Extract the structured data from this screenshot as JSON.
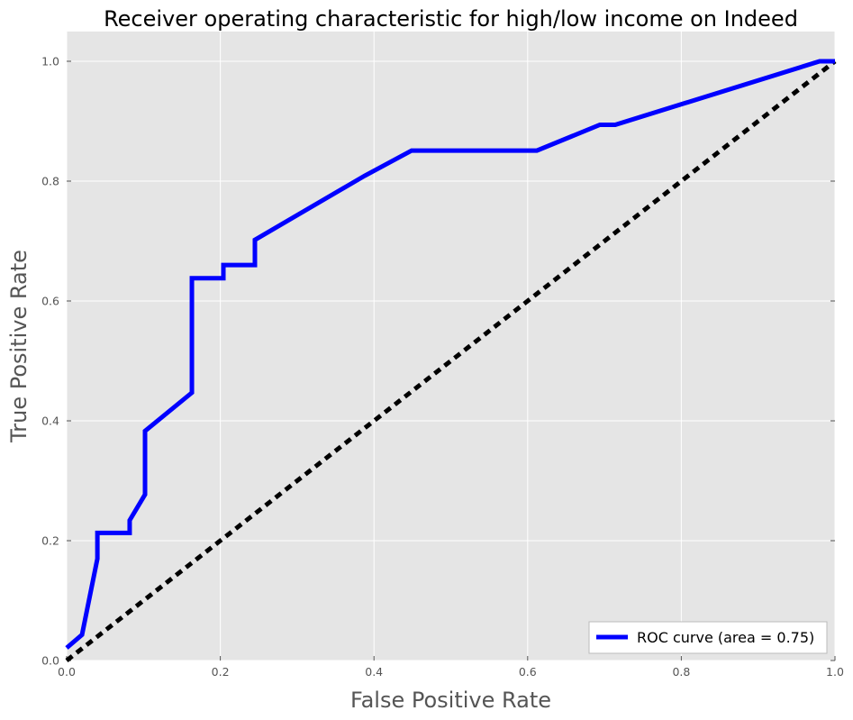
{
  "chart_data": {
    "type": "line",
    "title": "Receiver operating characteristic for high/low income on Indeed",
    "xlabel": "False Positive Rate",
    "ylabel": "True Positive Rate",
    "xlim": [
      0,
      1.0
    ],
    "ylim": [
      0,
      1.0
    ],
    "x_ticks": [
      0,
      0.2,
      0.4,
      0.6,
      0.8,
      1.0
    ],
    "y_ticks": [
      0,
      0.2,
      0.4,
      0.6,
      0.8,
      1.0
    ],
    "x_tick_labels": [
      "0.0",
      "0.2",
      "0.4",
      "0.6",
      "0.8",
      "1.0"
    ],
    "y_tick_labels": [
      "0.0",
      "0.2",
      "0.4",
      "0.6",
      "0.8",
      "1.0"
    ],
    "grid": true,
    "legend_position": "lower-right",
    "series": [
      {
        "name": "ROC curve (area = 0.75)",
        "color": "#0000ff",
        "style": "solid",
        "x": [
          0.0,
          0.02,
          0.04,
          0.04,
          0.082,
          0.082,
          0.102,
          0.102,
          0.163,
          0.163,
          0.204,
          0.204,
          0.245,
          0.245,
          0.388,
          0.449,
          0.612,
          0.694,
          0.714,
          0.98,
          1.0
        ],
        "y": [
          0.021,
          0.043,
          0.17,
          0.213,
          0.213,
          0.234,
          0.277,
          0.383,
          0.447,
          0.638,
          0.638,
          0.66,
          0.66,
          0.702,
          0.809,
          0.851,
          0.851,
          0.894,
          0.894,
          1.0,
          1.0
        ]
      },
      {
        "color": "#000000",
        "style": "dashed",
        "x": [
          0,
          1
        ],
        "y": [
          0,
          1
        ]
      }
    ]
  },
  "colors": {
    "plot_background": "#e5e5e5",
    "grid": "#ffffff",
    "roc_line": "#0000ff",
    "diagonal": "#000000"
  }
}
